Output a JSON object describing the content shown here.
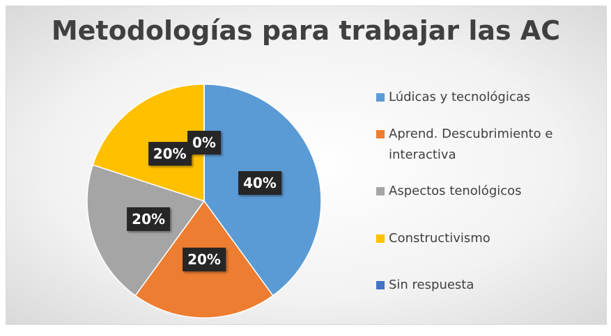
{
  "chart_data": {
    "type": "pie",
    "title": "Metodologías para trabajar las AC",
    "categories": [
      "Lúdicas y tecnológicas",
      "Aprend. Descubrimiento e interactiva",
      "Aspectos tenológicos",
      "Constructivismo",
      "Sin respuesta"
    ],
    "values": [
      40,
      20,
      20,
      20,
      0
    ],
    "value_labels": [
      "40%",
      "20%",
      "20%",
      "20%",
      "0%"
    ],
    "colors": [
      "#5b9bd5",
      "#ed7d31",
      "#a5a5a5",
      "#ffc000",
      "#4472c4"
    ],
    "legend": "right"
  }
}
